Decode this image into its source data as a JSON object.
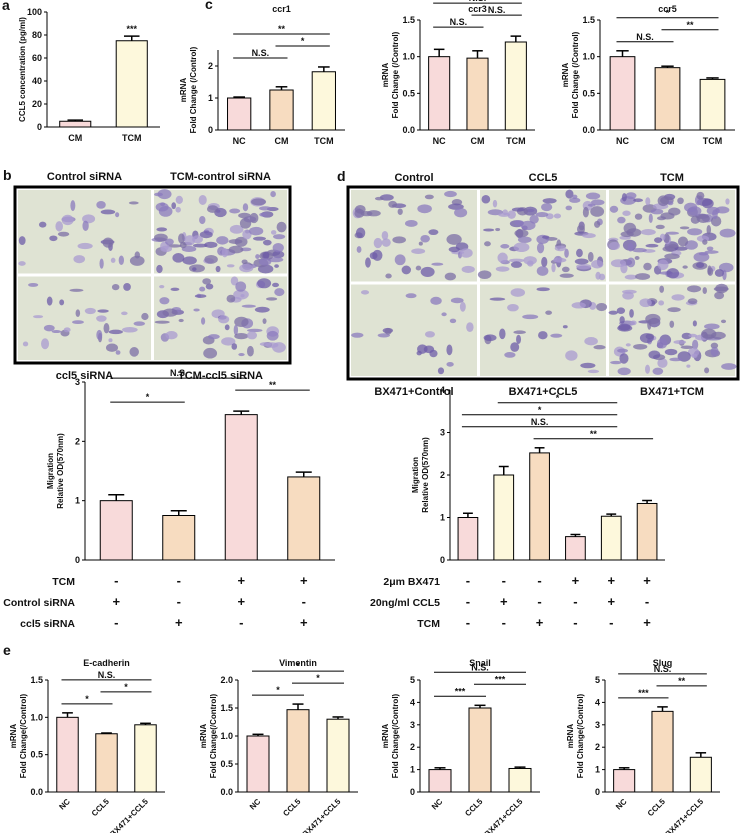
{
  "chart_data": [
    {
      "type": "bar",
      "panel": "a",
      "ylabel": [
        "CCL5 concentration (pg/ml)"
      ],
      "categories": [
        "CM",
        "TCM"
      ],
      "values": [
        5,
        75
      ],
      "errors": [
        1,
        4
      ],
      "colors": [
        "#f8dada",
        "#fdf8dc"
      ],
      "ylim": [
        0,
        100
      ],
      "yticks": [
        0,
        20,
        40,
        60,
        80,
        100
      ],
      "brackets": [
        {
          "between": [
            1
          ],
          "label": "***"
        }
      ]
    },
    {
      "type": "bar",
      "panel": "c",
      "title": "ccr1",
      "ylabel": [
        "mRNA",
        "Fold Change (/Control)"
      ],
      "categories": [
        "NC",
        "CM",
        "TCM"
      ],
      "values": [
        1.0,
        1.25,
        1.82
      ],
      "errors": [
        0.03,
        0.1,
        0.15
      ],
      "colors": [
        "#f8dada",
        "#f7dcc0",
        "#fdf8dc"
      ],
      "ylim": [
        0,
        2.5
      ],
      "yticks": [
        0,
        1,
        2
      ],
      "brackets": [
        {
          "between": [
            0,
            1
          ],
          "label": "N.S."
        },
        {
          "between": [
            1,
            2
          ],
          "label": "*"
        },
        {
          "between": [
            0,
            2
          ],
          "label": "**"
        }
      ]
    },
    {
      "type": "bar",
      "title": "ccr3",
      "ylabel": [
        "mRNA",
        "Fold Change (/Control)"
      ],
      "categories": [
        "NC",
        "CM",
        "TCM"
      ],
      "values": [
        1.0,
        0.98,
        1.2
      ],
      "errors": [
        0.1,
        0.1,
        0.08
      ],
      "colors": [
        "#f8dada",
        "#f7dcc0",
        "#fdf8dc"
      ],
      "ylim": [
        0,
        1.5
      ],
      "yticks": [
        {
          "value": 0,
          "label": "0.0"
        },
        0.5,
        {
          "value": 1,
          "label": "1.0"
        },
        1.5
      ],
      "brackets": [
        {
          "between": [
            0,
            1
          ],
          "label": "N.S."
        },
        {
          "between": [
            1,
            2
          ],
          "label": "N.S."
        },
        {
          "between": [
            0,
            2
          ],
          "label": "N.S."
        }
      ]
    },
    {
      "type": "bar",
      "title": "ccr5",
      "ylabel": [
        "mRNA",
        "Fold Change (/Control)"
      ],
      "categories": [
        "NC",
        "CM",
        "TCM"
      ],
      "values": [
        1.0,
        0.85,
        0.69
      ],
      "errors": [
        0.08,
        0.02,
        0.02
      ],
      "colors": [
        "#f8dada",
        "#f7dcc0",
        "#fdf8dc"
      ],
      "ylim": [
        0,
        1.5
      ],
      "yticks": [
        {
          "value": 0,
          "label": "0.0"
        },
        0.5,
        {
          "value": 1,
          "label": "1.0"
        },
        1.5
      ],
      "brackets": [
        {
          "between": [
            0,
            1
          ],
          "label": "N.S."
        },
        {
          "between": [
            1,
            2
          ],
          "label": "**"
        },
        {
          "between": [
            0,
            2
          ],
          "label": "*"
        }
      ]
    },
    {
      "type": "bar",
      "ylabel": [
        "Migration",
        "Relative OD(570nm)"
      ],
      "categories": [
        null,
        null,
        null,
        null
      ],
      "values": [
        1.0,
        0.75,
        2.45,
        1.4
      ],
      "errors": [
        0.1,
        0.08,
        0.06,
        0.08
      ],
      "colors": [
        "#f8dada",
        "#f7dcc0",
        "#f8dada",
        "#f7dcc0"
      ],
      "ylim": [
        0,
        3
      ],
      "yticks": [
        0,
        1,
        2,
        3
      ],
      "brackets": [
        {
          "between": [
            0,
            1
          ],
          "label": "*"
        },
        {
          "between": [
            2,
            3
          ],
          "label": "**"
        },
        {
          "between": [
            0,
            2
          ],
          "label": "N.S."
        }
      ],
      "conditions": [
        {
          "name": "TCM",
          "signs": [
            "-",
            "-",
            "+",
            "+"
          ]
        },
        {
          "name": "Control siRNA",
          "signs": [
            "+",
            "-",
            "+",
            "-"
          ]
        },
        {
          "name": "ccl5 siRNA",
          "signs": [
            "-",
            "+",
            "-",
            "+"
          ]
        }
      ]
    },
    {
      "type": "bar",
      "ylabel": [
        "Migration",
        "Relative OD(570nm)"
      ],
      "categories": [
        null,
        null,
        null,
        null,
        null,
        null
      ],
      "values": [
        1.0,
        2.0,
        2.52,
        0.55,
        1.03,
        1.33
      ],
      "errors": [
        0.1,
        0.2,
        0.12,
        0.05,
        0.05,
        0.07
      ],
      "colors": [
        "#f8dada",
        "#fdf8dc",
        "#f7dcc0",
        "#f8dada",
        "#fdf8dc",
        "#f7dcc0"
      ],
      "ylim": [
        0,
        4
      ],
      "yticks": [
        0,
        1,
        2,
        3,
        4
      ],
      "brackets": [
        {
          "between": [
            2,
            5
          ],
          "label": "**"
        },
        {
          "between": [
            0,
            4
          ],
          "label": "N.S."
        },
        {
          "between": [
            0,
            4
          ],
          "label": "*"
        },
        {
          "between": [
            1,
            4
          ],
          "label": "*"
        }
      ],
      "conditions": [
        {
          "name": "2μm BX471",
          "signs": [
            "-",
            "-",
            "-",
            "+",
            "+",
            "+"
          ]
        },
        {
          "name": "20ng/ml CCL5",
          "signs": [
            "-",
            "+",
            "-",
            "-",
            "+",
            "-"
          ]
        },
        {
          "name": "TCM",
          "signs": [
            "-",
            "-",
            "+",
            "-",
            "-",
            "+"
          ]
        }
      ]
    },
    {
      "type": "bar",
      "panel": "e",
      "title": "E-cadherin",
      "ylabel": [
        "mRNA",
        "Fold Change(/Control)"
      ],
      "categories": [
        "NC",
        "CCL5",
        "BX471+CCL5"
      ],
      "values": [
        1.0,
        0.78,
        0.9
      ],
      "errors": [
        0.06,
        0.01,
        0.02
      ],
      "colors": [
        "#f8dada",
        "#f7dcc0",
        "#fdf8dc"
      ],
      "ylim": [
        0,
        1.5
      ],
      "yticks": [
        {
          "value": 0,
          "label": "0.0"
        },
        0.5,
        {
          "value": 1,
          "label": "1.0"
        },
        1.5
      ],
      "brackets": [
        {
          "between": [
            0,
            1
          ],
          "label": "*"
        },
        {
          "between": [
            1,
            2
          ],
          "label": "*"
        },
        {
          "between": [
            0,
            2
          ],
          "label": "N.S."
        }
      ]
    },
    {
      "type": "bar",
      "title": "Vimentin",
      "ylabel": [
        "mRNA",
        "Fold Change(/Control)"
      ],
      "categories": [
        "NC",
        "CCL5",
        "BX471+CCL5"
      ],
      "values": [
        1.0,
        1.47,
        1.3
      ],
      "errors": [
        0.03,
        0.1,
        0.04
      ],
      "colors": [
        "#f8dada",
        "#f7dcc0",
        "#fdf8dc"
      ],
      "ylim": [
        0,
        2.0
      ],
      "yticks": [
        {
          "value": 0,
          "label": "0.0"
        },
        0.5,
        {
          "value": 1,
          "label": "1.0"
        },
        1.5,
        {
          "value": 2,
          "label": "2.0"
        }
      ],
      "brackets": [
        {
          "between": [
            0,
            1
          ],
          "label": "*"
        },
        {
          "between": [
            1,
            2
          ],
          "label": "*"
        },
        {
          "between": [
            0,
            2
          ],
          "label": "*"
        }
      ]
    },
    {
      "type": "bar",
      "title": "Snail",
      "ylabel": [
        "mRNA",
        "Fold Change(/Control)"
      ],
      "categories": [
        "NC",
        "CCL5",
        "BX471+CCL5"
      ],
      "values": [
        1.0,
        3.75,
        1.05
      ],
      "errors": [
        0.08,
        0.12,
        0.06
      ],
      "colors": [
        "#f8dada",
        "#f7dcc0",
        "#fdf8dc"
      ],
      "ylim": [
        0,
        5
      ],
      "yticks": [
        0,
        1,
        2,
        3,
        4,
        5
      ],
      "brackets": [
        {
          "between": [
            0,
            1
          ],
          "label": "***"
        },
        {
          "between": [
            1,
            2
          ],
          "label": "***"
        },
        {
          "between": [
            0,
            2
          ],
          "label": "N.S."
        }
      ]
    },
    {
      "type": "bar",
      "title": "Slug",
      "ylabel": [
        "mRNA",
        "Fold Change(/Control)"
      ],
      "categories": [
        "NC",
        "CCL5",
        "BX471+CCL5"
      ],
      "values": [
        1.0,
        3.6,
        1.55
      ],
      "errors": [
        0.08,
        0.2,
        0.2
      ],
      "colors": [
        "#f8dada",
        "#f7dcc0",
        "#fdf8dc"
      ],
      "ylim": [
        0,
        5
      ],
      "yticks": [
        0,
        1,
        2,
        3,
        4,
        5
      ],
      "brackets": [
        {
          "between": [
            0,
            1
          ],
          "label": "***"
        },
        {
          "between": [
            1,
            2
          ],
          "label": "**"
        },
        {
          "between": [
            0,
            2
          ],
          "label": "N.S."
        }
      ]
    }
  ],
  "image_panels": [
    {
      "panel": "b",
      "labels": [
        "Control siRNA",
        "TCM-control siRNA",
        "ccl5 siRNA",
        "TCM-ccl5 siRNA"
      ]
    },
    {
      "panel": "d",
      "labels": [
        "Control",
        "CCL5",
        "TCM",
        "BX471+Control",
        "BX471+CCL5",
        "BX471+TCM"
      ]
    }
  ]
}
